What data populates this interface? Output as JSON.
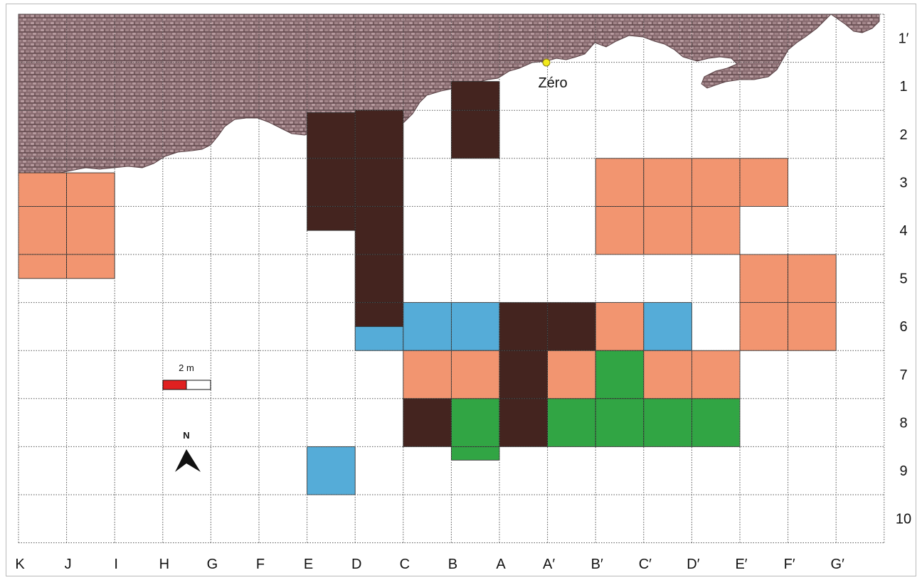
{
  "columns": [
    "K",
    "J",
    "I",
    "H",
    "G",
    "F",
    "E",
    "D",
    "C",
    "B",
    "A",
    "A′",
    "B′",
    "C′",
    "D′",
    "E′",
    "F′",
    "G′"
  ],
  "rows": [
    "1′",
    "1",
    "2",
    "3",
    "4",
    "5",
    "6",
    "7",
    "8",
    "9",
    "10"
  ],
  "datum_label": "Zéro",
  "scale_bar": {
    "label": "2 m"
  },
  "north_arrow": {
    "label": "N"
  },
  "colors": {
    "rock": "#8a6d72",
    "dark_brown": "#44241f",
    "salmon": "#f29570",
    "blue": "#55acd8",
    "green": "#31a544",
    "grid": "#555555",
    "datum_point": "#f2ea1b",
    "scale_red": "#e02020"
  }
}
